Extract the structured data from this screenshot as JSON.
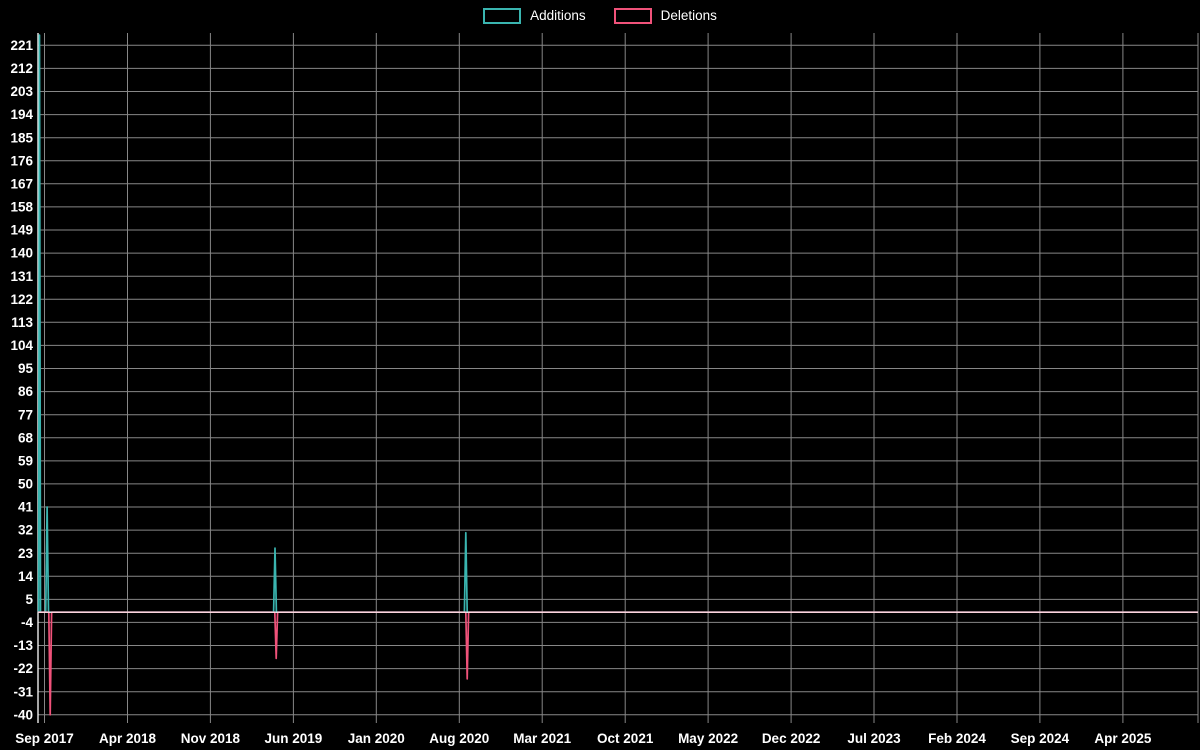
{
  "page": {
    "background": "#000000",
    "text_color": "#ffffff"
  },
  "chart_data": {
    "type": "line",
    "title": "",
    "legend_position": "top-center",
    "background": "#000000",
    "grid": true,
    "grid_color": "#878787",
    "axis_line_color": "#ffffff",
    "zero_line_color": "#ffffff",
    "text_color": "#ffffff",
    "x_axis": {
      "label": "",
      "tick_labels": [
        "Sep 2017",
        "Apr 2018",
        "Nov 2018",
        "Jun 2019",
        "Jan 2020",
        "Aug 2020",
        "Mar 2021",
        "Oct 2021",
        "May 2022",
        "Dec 2022",
        "Jul 2023",
        "Feb 2024",
        "Sep 2024",
        "Apr 2025"
      ],
      "tick_months": [
        0,
        7,
        14,
        21,
        28,
        35,
        42,
        49,
        56,
        63,
        70,
        77,
        84,
        91
      ],
      "domain_months": [
        -0.55,
        97.34
      ]
    },
    "y_axis": {
      "label": "",
      "ticks": [
        -40,
        -31,
        -22,
        -13,
        -4,
        5,
        14,
        23,
        32,
        41,
        50,
        59,
        68,
        77,
        86,
        95,
        104,
        113,
        122,
        131,
        140,
        149,
        158,
        167,
        176,
        185,
        194,
        203,
        212,
        221
      ],
      "domain": [
        -43.2,
        225.8
      ]
    },
    "series": [
      {
        "name": "Additions",
        "color": "#3ab5b0",
        "baseline": 0,
        "spikes": [
          {
            "x": -0.42,
            "v": 225,
            "w": 0.08
          },
          {
            "x": 0.22,
            "v": 41
          },
          {
            "x": 19.45,
            "v": 25
          },
          {
            "x": 35.55,
            "v": 31
          }
        ]
      },
      {
        "name": "Deletions",
        "color": "#f0527a",
        "baseline": 0,
        "spikes": [
          {
            "x": 0.48,
            "v": -40
          },
          {
            "x": 19.55,
            "v": -18
          },
          {
            "x": 35.67,
            "v": -26
          }
        ]
      }
    ]
  }
}
